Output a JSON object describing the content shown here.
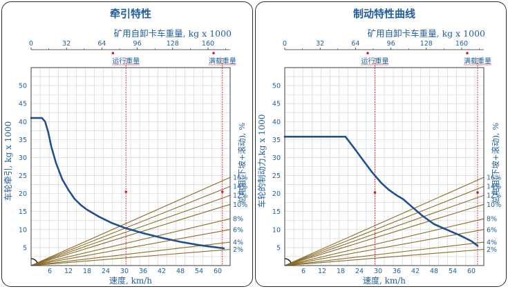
{
  "colors": {
    "curve": "#1f4e93",
    "grade_lines": "#8b6b22",
    "grid": "#cfcfcf",
    "marker": "#d41d24",
    "text": "#1f5c99",
    "frame": "#2a2a2a"
  },
  "chart_data": [
    {
      "type": "line",
      "title": "牵引特性",
      "top_axis_label": "矿用自卸卡车重量, kg x 1000",
      "top_ticks": [
        "0",
        "32",
        "64",
        "96",
        "128",
        "160"
      ],
      "top_range": [
        0,
        180
      ],
      "xlabel": "速度, km/h",
      "xlim": [
        0,
        64
      ],
      "x_ticks": [
        "6",
        "12",
        "18",
        "24",
        "30",
        "36",
        "42",
        "48",
        "54",
        "60"
      ],
      "ylabel": "车轮牵引, kg x 1000",
      "ylim": [
        0,
        55
      ],
      "y_ticks": [
        "5",
        "10",
        "15",
        "20",
        "25",
        "30",
        "35",
        "40",
        "45",
        "50"
      ],
      "right_axis_label": "总电阻(下坡+滚动), %",
      "grade_labels": [
        "16%",
        "14%",
        "12%",
        "10%",
        "8%",
        "6%",
        "4%",
        "2%"
      ],
      "grade_ends": [
        24.5,
        22,
        19.5,
        17,
        13,
        10,
        6.5,
        4.5
      ],
      "markers": [
        {
          "label": "运行重量",
          "weight": 74,
          "x": 30.5,
          "point_y": 20.5
        },
        {
          "label": "满载重量",
          "weight": 165,
          "x": 61.5,
          "point_y": 20.5
        }
      ],
      "grid": true,
      "series": [
        {
          "x": [
            0,
            3.5,
            4.5,
            5.5,
            6.5,
            8,
            10,
            12,
            14,
            16,
            18,
            22,
            26,
            30,
            36,
            42,
            48,
            54,
            60,
            62
          ],
          "y": [
            41,
            41,
            40,
            37,
            33,
            28.5,
            24,
            21,
            18.5,
            16.8,
            15.5,
            13.5,
            11.8,
            10.5,
            9,
            7.7,
            6.6,
            5.7,
            5,
            4.8
          ]
        }
      ]
    },
    {
      "type": "line",
      "title": "制动特性曲线",
      "top_axis_label": "矿用自卸卡车重量, kg x 1000",
      "top_ticks": [
        "0",
        "32",
        "64",
        "96",
        "128",
        "160"
      ],
      "top_range": [
        0,
        180
      ],
      "xlabel": "速度, km/h",
      "xlim": [
        0,
        64
      ],
      "x_ticks": [
        "6",
        "12",
        "18",
        "24",
        "30",
        "36",
        "42",
        "48",
        "54",
        "60"
      ],
      "ylabel": "车轮的制动力,kg x 1000",
      "ylim": [
        0,
        55
      ],
      "y_ticks": [
        "5",
        "10",
        "15",
        "20",
        "25",
        "30",
        "35",
        "40",
        "45",
        "50"
      ],
      "right_axis_label": "总电阻(下坡+滚动), %",
      "grade_labels": [
        "16%",
        "14%",
        "12%",
        "10%",
        "8%",
        "6%",
        "4%",
        "2%"
      ],
      "grade_ends": [
        24.5,
        22,
        19.5,
        17,
        13,
        10,
        6.5,
        4.5
      ],
      "markers": [
        {
          "label": "运行重量",
          "weight": 75,
          "x": 29,
          "point_y": 20.3
        },
        {
          "label": "满载重量",
          "weight": 165,
          "x": 62,
          "point_y": 20.3
        }
      ],
      "grid": true,
      "series": [
        {
          "x": [
            0,
            19.5,
            22,
            25,
            28,
            31,
            33.5,
            36,
            38,
            40,
            44,
            48,
            52,
            56,
            60,
            62
          ],
          "y": [
            35.8,
            35.8,
            33,
            29.5,
            26,
            23,
            21,
            19.5,
            18.5,
            17,
            14,
            11.5,
            10,
            8.5,
            6.8,
            5.5
          ]
        }
      ]
    }
  ]
}
